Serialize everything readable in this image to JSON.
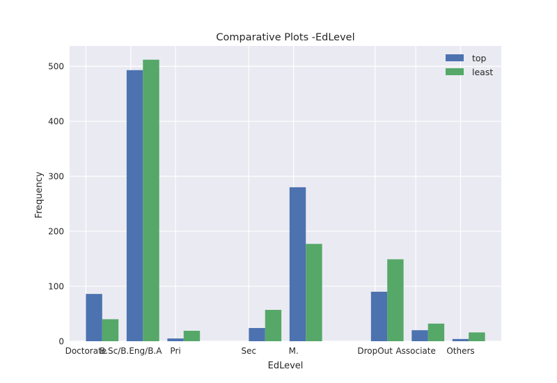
{
  "chart_data": {
    "type": "bar",
    "title": "Comparative Plots -EdLevel",
    "xlabel": "EdLevel",
    "ylabel": "Frequency",
    "ylim": [
      0,
      537
    ],
    "yticks": [
      0,
      100,
      200,
      300,
      400,
      500
    ],
    "grid": true,
    "legend_position": "top-right",
    "bins": [
      {
        "x0": 0.0,
        "x1": 0.4,
        "values": [
          86,
          40
        ]
      },
      {
        "x0": 0.5,
        "x1": 0.9,
        "values": [
          493,
          512
        ]
      },
      {
        "x0": 1.0,
        "x1": 1.4,
        "values": [
          5,
          19
        ]
      },
      {
        "x0": 1.5,
        "x1": 1.9,
        "values": [
          0,
          0
        ]
      },
      {
        "x0": 2.0,
        "x1": 2.4,
        "values": [
          24,
          57
        ]
      },
      {
        "x0": 2.5,
        "x1": 2.9,
        "values": [
          280,
          177
        ]
      },
      {
        "x0": 3.0,
        "x1": 3.4,
        "values": [
          0,
          0
        ]
      },
      {
        "x0": 3.5,
        "x1": 3.9,
        "values": [
          90,
          149
        ]
      },
      {
        "x0": 4.0,
        "x1": 4.4,
        "values": [
          20,
          32
        ]
      },
      {
        "x0": 4.5,
        "x1": 4.9,
        "values": [
          4,
          16
        ]
      }
    ],
    "xlim": [
      -0.2,
      5.1
    ],
    "categories": [
      {
        "label": "Doctorate",
        "pos": 0.0
      },
      {
        "label": "B.Sc/B.Eng/B.A",
        "pos": 0.55
      },
      {
        "label": "Pri",
        "pos": 1.1
      },
      {
        "label": "Sec",
        "pos": 2.0
      },
      {
        "label": "M.",
        "pos": 2.55
      },
      {
        "label": "DropOut",
        "pos": 3.55
      },
      {
        "label": "Associate",
        "pos": 4.05
      },
      {
        "label": "Others",
        "pos": 4.6
      }
    ],
    "series": [
      {
        "name": "top",
        "color": "#4c72b0"
      },
      {
        "name": "least",
        "color": "#55a868"
      }
    ]
  }
}
